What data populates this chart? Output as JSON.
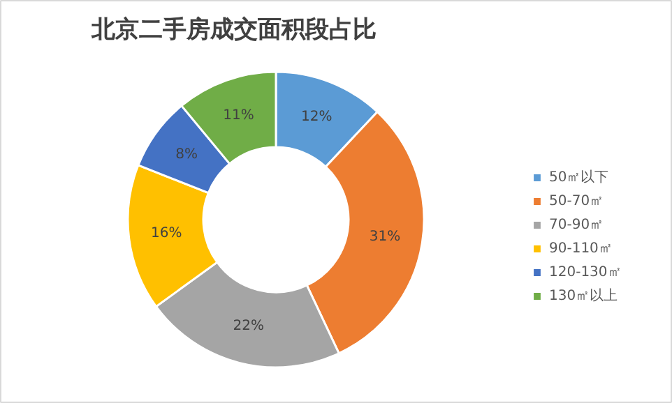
{
  "chart_data": {
    "type": "donut",
    "title": "北京二手房成交面积段占比",
    "categories": [
      "50㎡以下",
      "50-70㎡",
      "70-90㎡",
      "90-110㎡",
      "120-130㎡",
      "130㎡以上"
    ],
    "values": [
      12,
      31,
      22,
      16,
      8,
      11
    ],
    "colors": [
      "#5b9bd5",
      "#ed7d31",
      "#a5a5a5",
      "#ffc000",
      "#4472c4",
      "#70ad47"
    ],
    "value_labels": [
      "12%",
      "31%",
      "22%",
      "16%",
      "8%",
      "11%"
    ],
    "legend": "right"
  }
}
